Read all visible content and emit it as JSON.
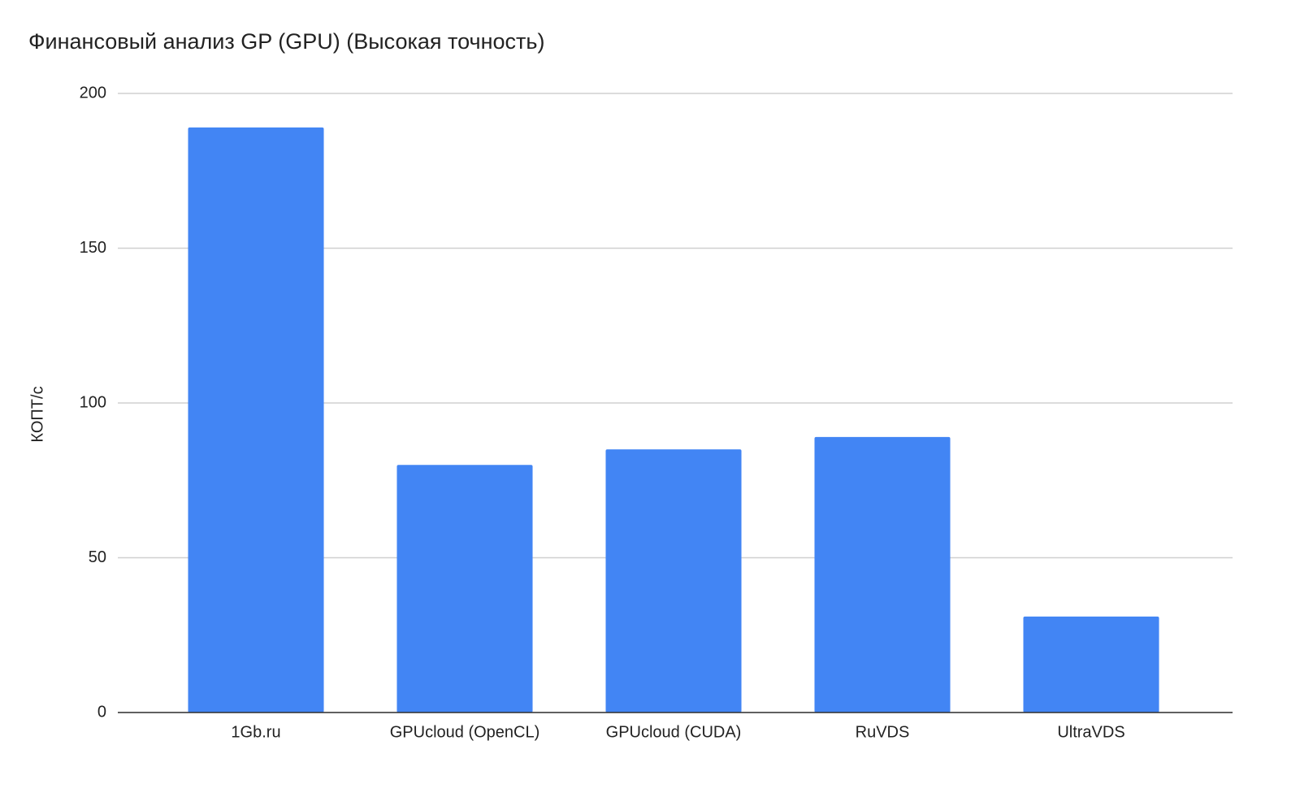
{
  "chart_data": {
    "type": "bar",
    "title": "Финансовый анализ GP (GPU) (Высокая точность)",
    "y_label": "КОПТ/с",
    "categories": [
      "1Gb.ru",
      "GPUcloud (OpenCL)",
      "GPUcloud (CUDA)",
      "RuVDS",
      "UltraVDS"
    ],
    "values": [
      189,
      80,
      85,
      89,
      31
    ],
    "color": "#4285f4",
    "ylim": [
      0,
      200
    ],
    "yticks": [
      0,
      50,
      100,
      150,
      200
    ],
    "grid": true
  }
}
